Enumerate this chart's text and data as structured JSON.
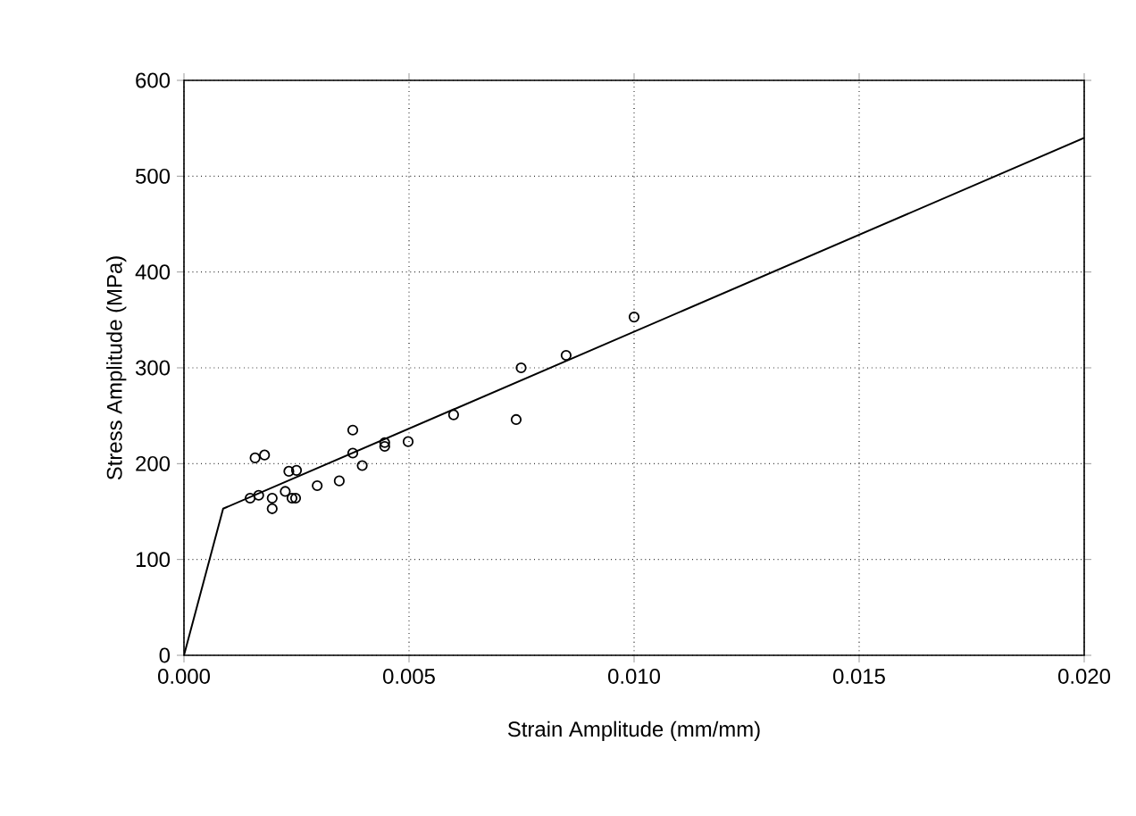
{
  "chart_data": {
    "type": "scatter",
    "xlabel": "Strain Amplitude (mm/mm)",
    "ylabel": "Stress Amplitude (MPa)",
    "xlim": [
      0,
      0.02
    ],
    "ylim": [
      0,
      600
    ],
    "xticks": [
      {
        "value": 0,
        "label": "0.000"
      },
      {
        "value": 0.005,
        "label": "0.005"
      },
      {
        "value": 0.01,
        "label": "0.010"
      },
      {
        "value": 0.015,
        "label": "0.015"
      },
      {
        "value": 0.02,
        "label": "0.020"
      }
    ],
    "yticks": [
      0,
      100,
      200,
      300,
      400,
      500,
      600
    ],
    "grid": true,
    "series": [
      {
        "color": "#000000",
        "marker": "circle",
        "x": [
          0.00147,
          0.00158,
          0.00166,
          0.00179,
          0.00196,
          0.00196,
          0.00225,
          0.00233,
          0.0024,
          0.0025,
          0.00248,
          0.00296,
          0.00345,
          0.00375,
          0.00375,
          0.00396,
          0.00446,
          0.00446,
          0.00498,
          0.00599,
          0.00738,
          0.00749,
          0.00849,
          0.01
        ],
        "values": [
          164,
          206,
          167,
          209,
          164,
          153,
          171,
          192,
          164,
          193,
          164,
          177,
          182,
          235,
          211,
          198,
          218,
          222,
          223,
          251,
          246,
          300,
          313,
          353
        ]
      },
      {
        "type": "line",
        "color": "#000000",
        "marker": "none",
        "line_style": "solid",
        "x": [
          0,
          0.00087,
          0.02
        ],
        "values": [
          0,
          153,
          540
        ]
      }
    ]
  }
}
